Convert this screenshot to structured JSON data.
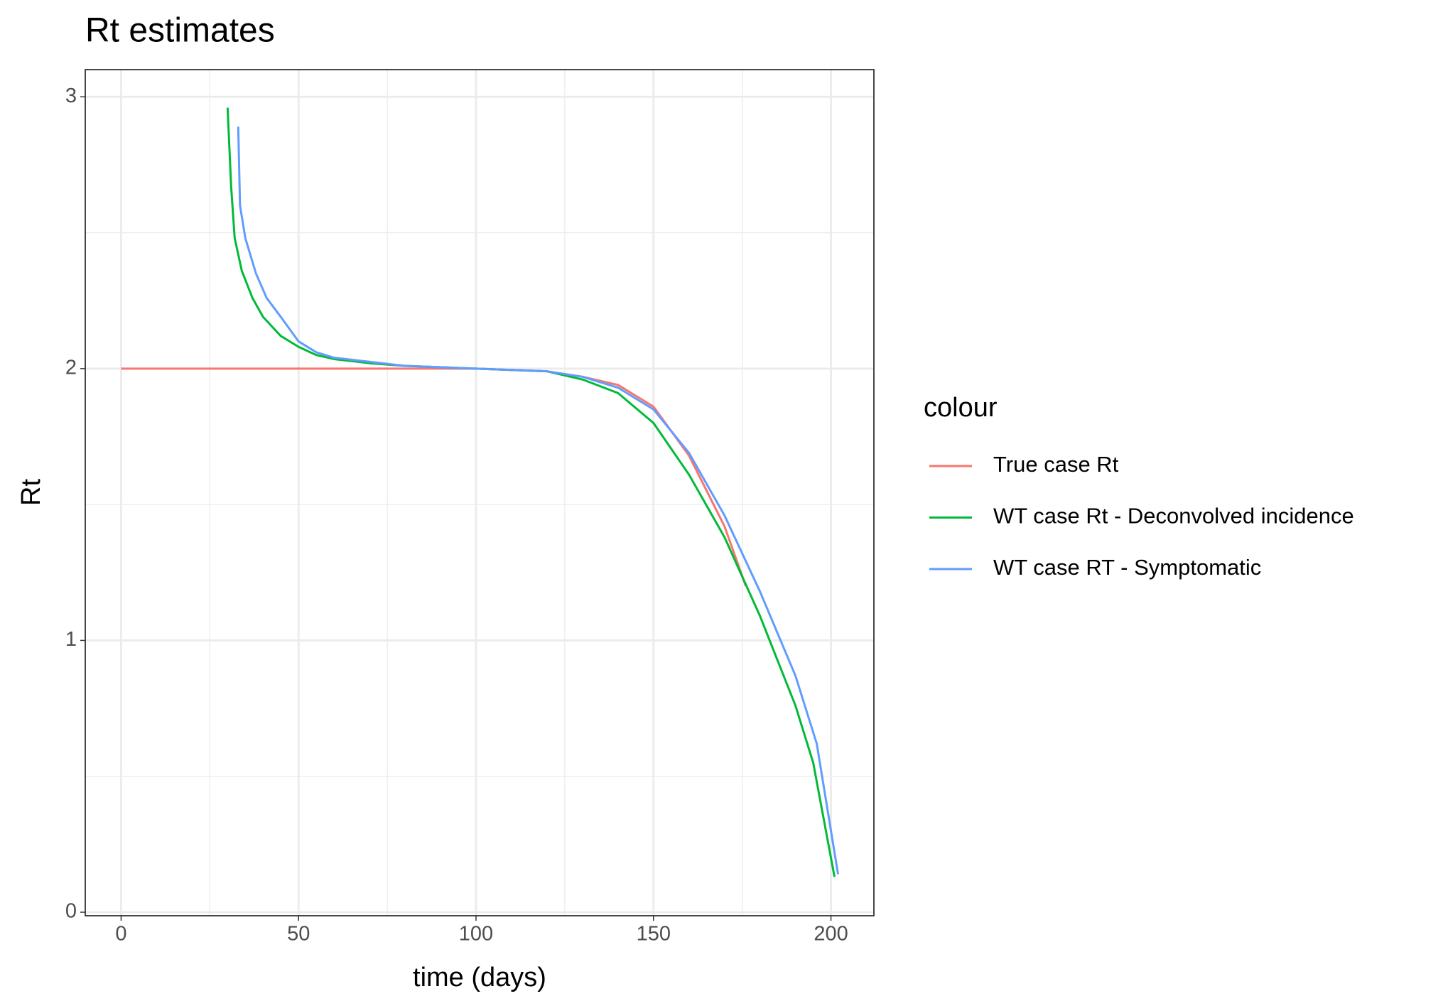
{
  "chart_data": {
    "type": "line",
    "title": "Rt estimates",
    "x_label": "time (days)",
    "y_label": "Rt",
    "legend_title": "colour",
    "legend_position": "right",
    "grid": true,
    "xlim": [
      -10.1,
      212.1
    ],
    "ylim": [
      -0.013,
      3.1
    ],
    "xticks": [
      0,
      50,
      100,
      150,
      200
    ],
    "yticks": [
      0,
      1,
      2,
      3
    ],
    "x_minor_grid": [
      25,
      75,
      125,
      175
    ],
    "y_minor_grid": [
      0.5,
      1.5,
      2.5
    ],
    "series": [
      {
        "name": "True case Rt",
        "color": "#F8766D",
        "x": [
          0,
          50,
          100,
          120,
          130,
          140,
          150,
          160,
          170,
          176
        ],
        "values": [
          2.0,
          2.0,
          2.0,
          1.99,
          1.97,
          1.94,
          1.86,
          1.68,
          1.42,
          1.2
        ]
      },
      {
        "name": "WT case Rt - Deconvolved incidence",
        "color": "#00BA38",
        "x": [
          30,
          31,
          32,
          34,
          37,
          40,
          45,
          50,
          55,
          60,
          70,
          80,
          100,
          120,
          130,
          140,
          150,
          160,
          170,
          180,
          190,
          195,
          201
        ],
        "values": [
          2.96,
          2.67,
          2.48,
          2.36,
          2.26,
          2.19,
          2.12,
          2.08,
          2.05,
          2.035,
          2.02,
          2.01,
          2.0,
          1.99,
          1.96,
          1.91,
          1.8,
          1.61,
          1.38,
          1.09,
          0.76,
          0.55,
          0.13
        ]
      },
      {
        "name": "WT case RT - Symptomatic",
        "color": "#619CFF",
        "x": [
          33,
          33.5,
          35,
          38,
          41,
          45,
          50,
          55,
          60,
          70,
          80,
          100,
          120,
          130,
          140,
          150,
          160,
          170,
          180,
          190,
          196,
          202
        ],
        "values": [
          2.89,
          2.6,
          2.48,
          2.35,
          2.26,
          2.19,
          2.1,
          2.06,
          2.04,
          2.025,
          2.01,
          2.0,
          1.99,
          1.97,
          1.93,
          1.85,
          1.69,
          1.46,
          1.18,
          0.87,
          0.62,
          0.14
        ]
      }
    ]
  }
}
